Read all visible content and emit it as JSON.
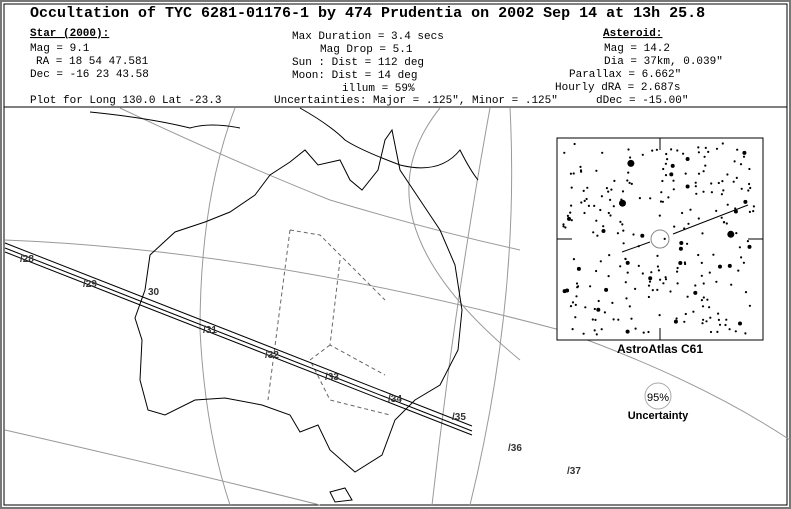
{
  "header": {
    "title": "Occultation of TYC 6281-01176-1 by 474 Prudentia on  2002 Sep 14 at 13h 25.8"
  },
  "star": {
    "heading": "Star (2000):",
    "lines": [
      "Mag = 9.1",
      "RA =  18 54 47.581",
      "Dec = -16 23 43.58"
    ]
  },
  "event": {
    "lines": [
      "Max Duration = 3.4 secs",
      "Mag Drop =  5.1",
      "Sun :   Dist = 112 deg",
      "Moon:   Dist = 14 deg",
      "illum = 59%"
    ]
  },
  "asteroid": {
    "heading": "Asteroid:",
    "lines": [
      "Mag = 14.2",
      "Dia = 37km, 0.039\"",
      "Parallax = 6.662\"",
      "Hourly dRA = 2.687s",
      "dDec = -15.00\""
    ]
  },
  "footer": {
    "plot": "Plot for Long 130.0  Lat -23.3",
    "uncertainties": "Uncertainties: Major = .125\", Minor = .125\""
  },
  "map": {
    "time_labels": [
      "/28",
      "/29",
      "30",
      "/31",
      "/32",
      "/33",
      "/34",
      "/35",
      "/36",
      "/37"
    ]
  },
  "inset": {
    "caption": "AstroAtlas C61",
    "confidence": "95%",
    "uncertainty": "Uncertainty"
  }
}
